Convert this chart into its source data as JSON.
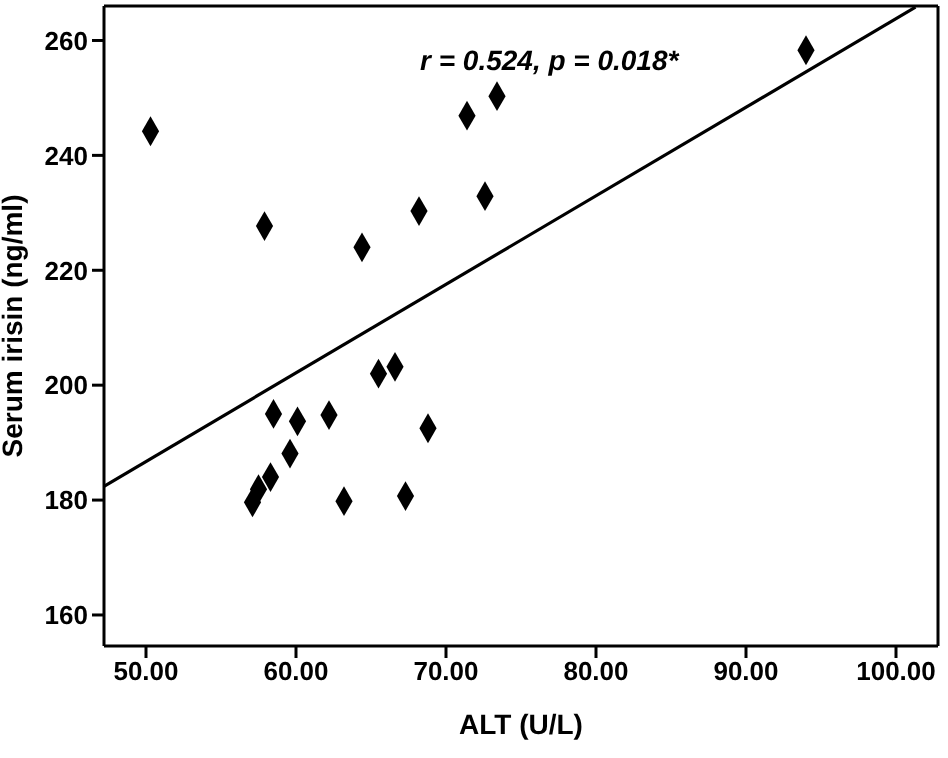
{
  "chart_data": {
    "type": "scatter",
    "xlabel": "ALT (U/L)",
    "ylabel": "Serum irisin (ng/ml)",
    "annotations": [
      "r = 0.524, p = 0.018*"
    ],
    "xlim": [
      47.2,
      102.8
    ],
    "ylim": [
      154.6,
      266
    ],
    "xticks": [
      {
        "value": 50,
        "label": "50.00"
      },
      {
        "value": 60,
        "label": "60.00"
      },
      {
        "value": 70,
        "label": "70.00"
      },
      {
        "value": 80,
        "label": "80.00"
      },
      {
        "value": 90,
        "label": "90.00"
      },
      {
        "value": 100,
        "label": "100.00"
      }
    ],
    "yticks": [
      160,
      180,
      200,
      220,
      240,
      260
    ],
    "marker": "diamond",
    "series": [
      {
        "color": "#000000",
        "x": [
          50.3,
          57.9,
          64.4,
          68.2,
          71.4,
          73.4,
          72.6,
          94.0,
          65.5,
          66.6,
          58.5,
          60.1,
          62.2,
          68.8,
          59.6,
          58.3,
          57.5,
          57.1,
          63.2,
          67.3
        ],
        "values": [
          244.2,
          227.7,
          224,
          230.3,
          246.9,
          250.3,
          232.9,
          258.3,
          202,
          203.2,
          195.0,
          193.7,
          194.8,
          192.5,
          188.1,
          184,
          181.9,
          179.6,
          179.8,
          180.7
        ]
      },
      {
        "type": "line",
        "color": "#000000",
        "marker": "none",
        "line_style": "solid",
        "x": [
          47.2,
          101.3
        ],
        "values": [
          182.4,
          265.8
        ]
      }
    ]
  }
}
